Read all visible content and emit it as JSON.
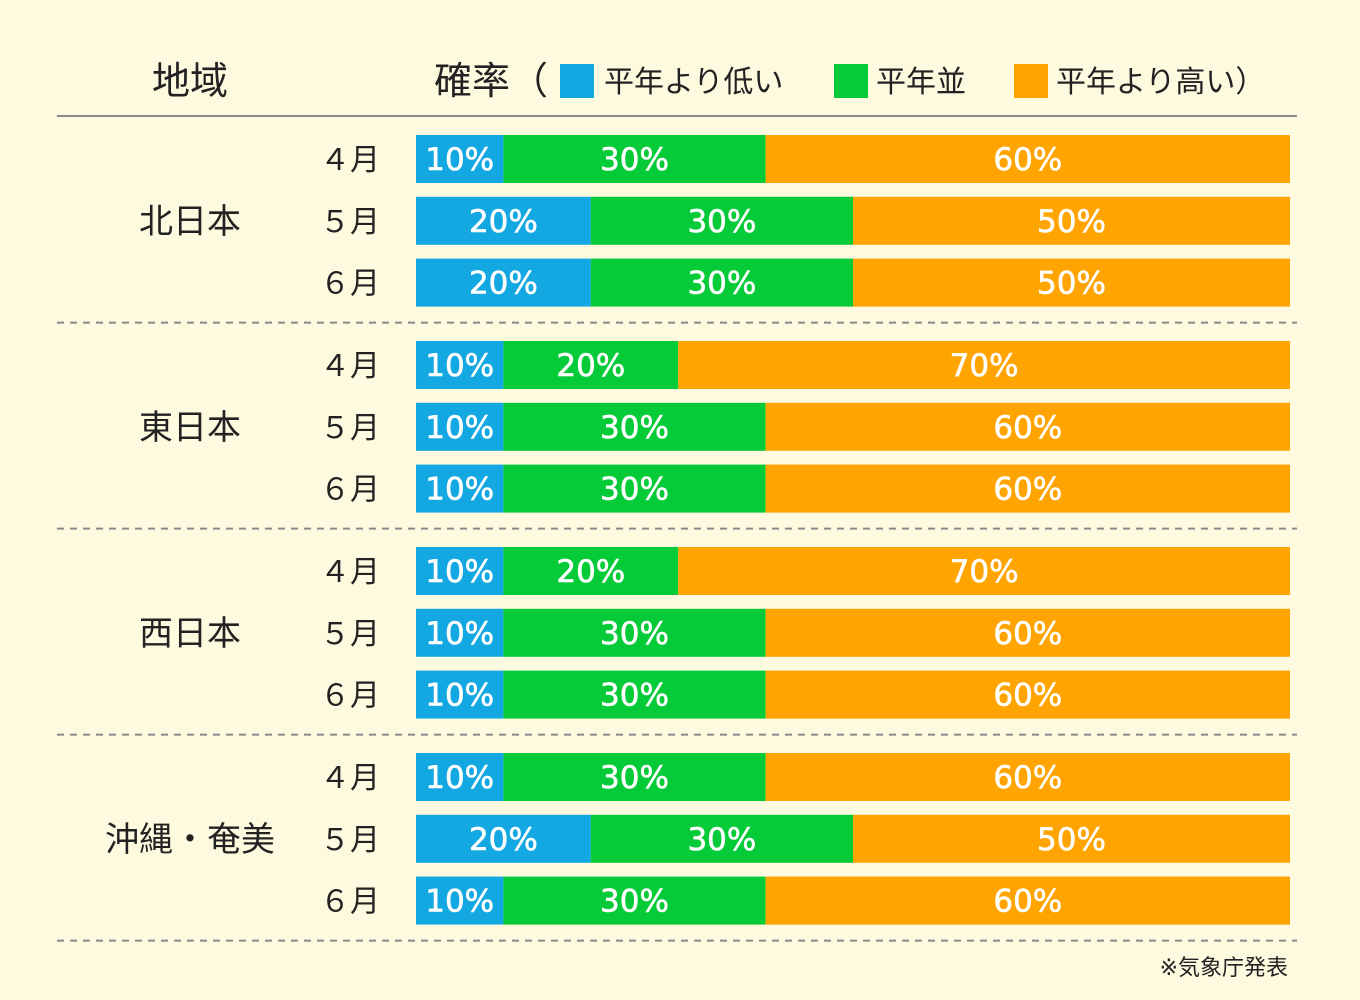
{
  "header": {
    "region_col": "地域",
    "prob_col": "確率（",
    "legend": [
      {
        "key": "low",
        "label": "平年より低い",
        "color": "#13A8E2"
      },
      {
        "key": "normal",
        "label": "平年並",
        "color": "#06CB38"
      },
      {
        "key": "high",
        "label": "平年より高い）",
        "color": "#FFA400"
      }
    ]
  },
  "source": "※気象庁発表",
  "chart_data": {
    "type": "bar",
    "orientation": "horizontal",
    "stacked": true,
    "xlim": [
      0,
      100
    ],
    "series_names": [
      "平年より低い",
      "平年並",
      "平年より高い"
    ],
    "groups": [
      {
        "region": "北日本",
        "rows": [
          {
            "month": "４月",
            "values": [
              10,
              30,
              60
            ]
          },
          {
            "month": "５月",
            "values": [
              20,
              30,
              50
            ]
          },
          {
            "month": "６月",
            "values": [
              20,
              30,
              50
            ]
          }
        ]
      },
      {
        "region": "東日本",
        "rows": [
          {
            "month": "４月",
            "values": [
              10,
              20,
              70
            ]
          },
          {
            "month": "５月",
            "values": [
              10,
              30,
              60
            ]
          },
          {
            "month": "６月",
            "values": [
              10,
              30,
              60
            ]
          }
        ]
      },
      {
        "region": "西日本",
        "rows": [
          {
            "month": "４月",
            "values": [
              10,
              20,
              70
            ]
          },
          {
            "month": "５月",
            "values": [
              10,
              30,
              60
            ]
          },
          {
            "month": "６月",
            "values": [
              10,
              30,
              60
            ]
          }
        ]
      },
      {
        "region": "沖縄・奄美",
        "rows": [
          {
            "month": "４月",
            "values": [
              10,
              30,
              60
            ]
          },
          {
            "month": "５月",
            "values": [
              20,
              30,
              50
            ]
          },
          {
            "month": "６月",
            "values": [
              10,
              30,
              60
            ]
          }
        ]
      }
    ]
  }
}
